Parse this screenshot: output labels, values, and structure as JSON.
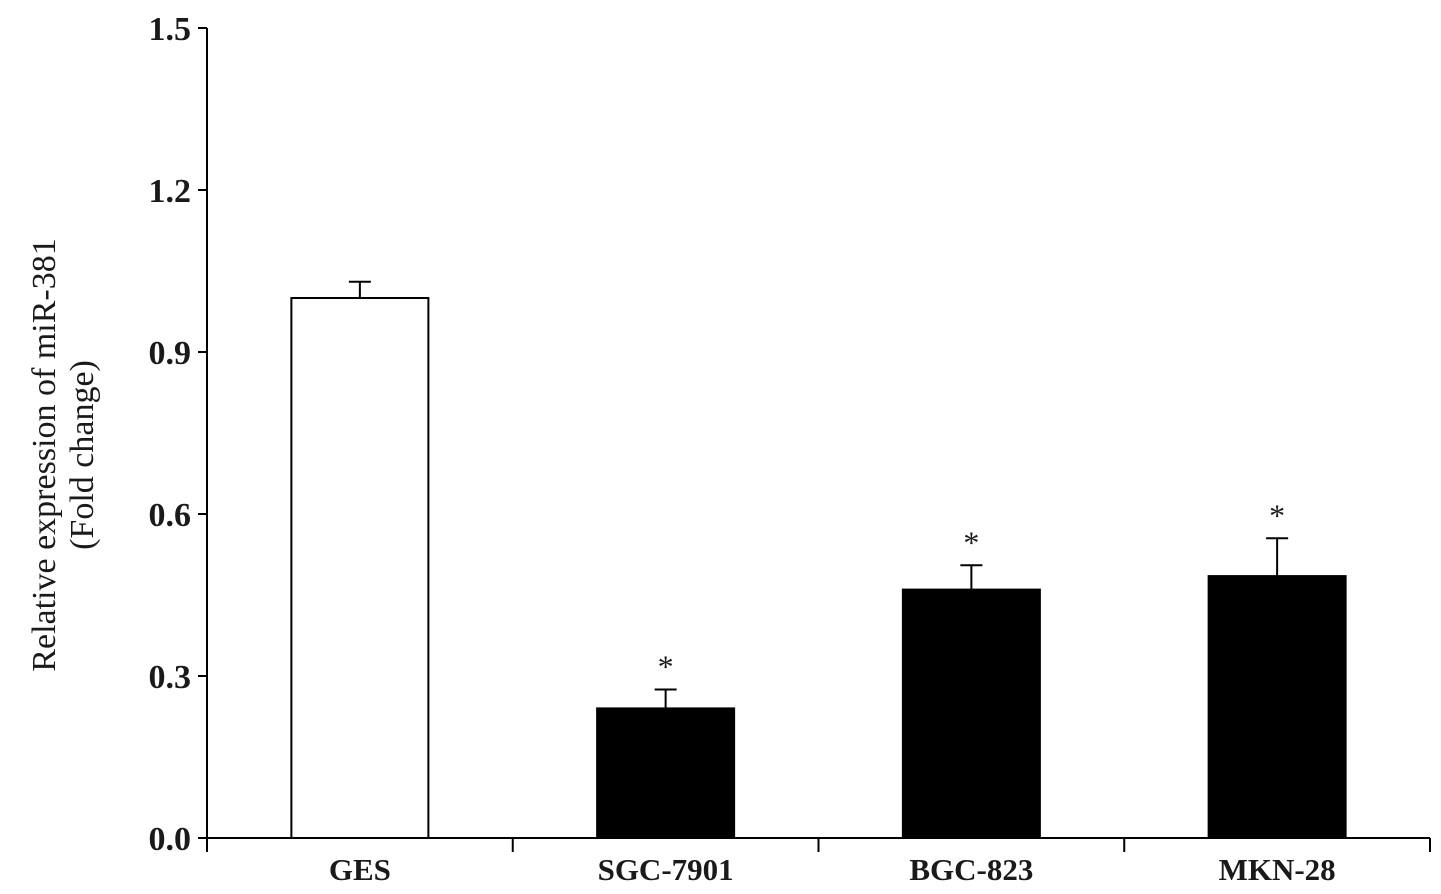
{
  "chart_data": {
    "type": "bar",
    "categories": [
      "GES",
      "SGC-7901",
      "BGC-823",
      "MKN-28"
    ],
    "values": [
      1.0,
      0.24,
      0.46,
      0.485
    ],
    "errors": [
      0.03,
      0.035,
      0.045,
      0.07
    ],
    "significance": [
      "",
      "*",
      "*",
      "*"
    ],
    "bar_colors": [
      "#ffffff",
      "#000000",
      "#000000",
      "#000000"
    ],
    "bar_edge_color": "#000000",
    "ylabel_lines": [
      "Relative expression of miR-381",
      "(Fold change)"
    ],
    "xlabel": "",
    "title": "",
    "ylim": [
      0,
      1.5
    ],
    "yticks": [
      0.0,
      0.3,
      0.6,
      0.9,
      1.2,
      1.5
    ],
    "ytick_labels": [
      "0.0",
      "0.3",
      "0.6",
      "0.9",
      "1.2",
      "1.5"
    ],
    "grid": false,
    "legend": "none"
  }
}
